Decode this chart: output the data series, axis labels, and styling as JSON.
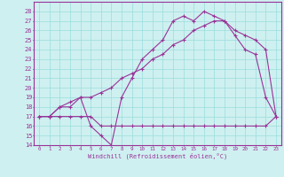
{
  "xlabel": "Windchill (Refroidissement éolien,°C)",
  "bg_color": "#cff0f0",
  "line_color": "#993399",
  "grid_color": "#99dddd",
  "ylim": [
    14,
    29
  ],
  "xlim": [
    -0.5,
    23.5
  ],
  "yticks": [
    14,
    15,
    16,
    17,
    18,
    19,
    20,
    21,
    22,
    23,
    24,
    25,
    26,
    27,
    28
  ],
  "xticks": [
    0,
    1,
    2,
    3,
    4,
    5,
    6,
    7,
    8,
    9,
    10,
    11,
    12,
    13,
    14,
    15,
    16,
    17,
    18,
    19,
    20,
    21,
    22,
    23
  ],
  "series1_x": [
    0,
    1,
    2,
    3,
    4,
    5,
    6,
    7,
    8,
    9,
    10,
    11,
    12,
    13,
    14,
    15,
    16,
    17,
    18,
    19,
    20,
    21,
    22,
    23
  ],
  "series1_y": [
    17,
    17,
    17,
    17,
    17,
    17,
    16,
    16,
    16,
    16,
    16,
    16,
    16,
    16,
    16,
    16,
    16,
    16,
    16,
    16,
    16,
    16,
    16,
    17
  ],
  "series2_x": [
    0,
    1,
    2,
    3,
    4,
    5,
    6,
    7,
    8,
    9,
    10,
    11,
    12,
    13,
    14,
    15,
    16,
    17,
    18,
    19,
    20,
    21,
    22,
    23
  ],
  "series2_y": [
    17,
    17,
    18,
    18,
    19,
    16,
    15,
    14,
    19,
    21,
    23,
    24,
    25,
    27,
    27.5,
    27,
    28,
    27.5,
    27,
    25.5,
    24,
    23.5,
    19,
    17
  ],
  "series3_x": [
    0,
    1,
    2,
    3,
    4,
    5,
    6,
    7,
    8,
    9,
    10,
    11,
    12,
    13,
    14,
    15,
    16,
    17,
    18,
    19,
    20,
    21,
    22,
    23
  ],
  "series3_y": [
    17,
    17,
    18,
    18.5,
    19,
    19,
    19.5,
    20,
    21,
    21.5,
    22,
    23,
    23.5,
    24.5,
    25,
    26,
    26.5,
    27,
    27,
    26,
    25.5,
    25,
    24,
    17
  ]
}
